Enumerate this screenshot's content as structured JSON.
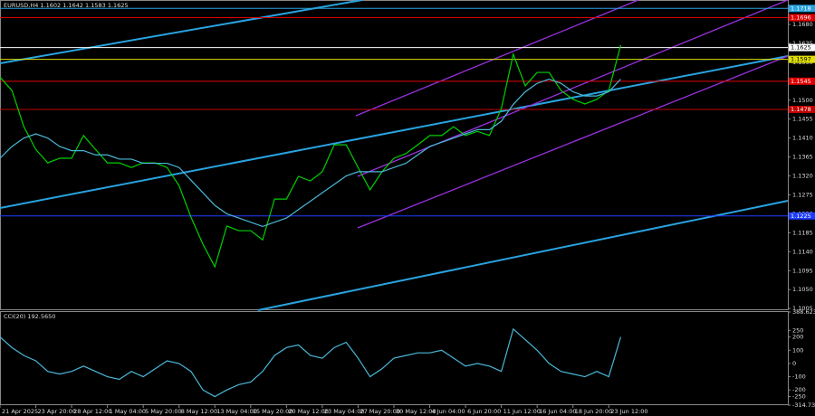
{
  "chart_data": [
    {
      "type": "line",
      "title": "EURUSD,H4  1.1602 1.1642 1.1583 1.1625",
      "xlim": [
        0,
        66
      ],
      "xticks": [
        {
          "value": 0,
          "label": "21 Apr 2025"
        },
        {
          "value": 3,
          "label": "23 Apr 20:00"
        },
        {
          "value": 6,
          "label": "28 Apr 12:00"
        },
        {
          "value": 9,
          "label": "1 May 04:00"
        },
        {
          "value": 12,
          "label": "5 May 20:00"
        },
        {
          "value": 15,
          "label": "8 May 12:00"
        },
        {
          "value": 18,
          "label": "13 May 04:00"
        },
        {
          "value": 21,
          "label": "15 May 20:00"
        },
        {
          "value": 24,
          "label": "20 May 12:00"
        },
        {
          "value": 27,
          "label": "23 May 04:00"
        },
        {
          "value": 30,
          "label": "27 May 20:00"
        },
        {
          "value": 33,
          "label": "30 May 12:00"
        },
        {
          "value": 36,
          "label": "4 Jun 04:00"
        },
        {
          "value": 39,
          "label": "6 Jun 20:00"
        },
        {
          "value": 42,
          "label": "11 Jun 12:00"
        },
        {
          "value": 45,
          "label": "16 Jun 04:00"
        },
        {
          "value": 48,
          "label": "18 Jun 20:00"
        },
        {
          "value": 51,
          "label": "23 Jun 12:00"
        }
      ],
      "ylim": [
        1.1001,
        1.1738
      ],
      "yticks": [
        1.1005,
        {
          "value": 1.105,
          "label": "1.1050"
        },
        1.1095,
        {
          "value": 1.114,
          "label": "1.1140"
        },
        1.1185,
        {
          "value": 1.123,
          "label": "1.1230"
        },
        1.1275,
        {
          "value": 1.132,
          "label": "1.1320"
        },
        1.1365,
        {
          "value": 1.141,
          "label": "1.1410"
        },
        1.1455,
        {
          "value": 1.15,
          "label": "1.1500"
        },
        1.1545,
        {
          "value": 1.159,
          "label": "1.1590"
        },
        1.1635,
        {
          "value": 1.168,
          "label": "1.1680"
        }
      ],
      "levels": [
        {
          "value": 1.1718,
          "color": "#29a3e0"
        },
        {
          "value": 1.1696,
          "color": "#e00000"
        },
        {
          "value": 1.1625,
          "color": "#ffffff"
        },
        {
          "value": 1.1597,
          "color": "#e0e000"
        },
        {
          "value": 1.1545,
          "color": "#e00000"
        },
        {
          "value": 1.1478,
          "color": "#c00000"
        },
        {
          "value": 1.1225,
          "color": "#1e3cff"
        }
      ],
      "series": [
        {
          "color": "#00d000",
          "values": [
            1.1555,
            1.1523,
            1.1437,
            1.1383,
            1.1351,
            1.1362,
            1.1362,
            1.1416,
            1.1383,
            1.1351,
            1.1351,
            1.134,
            1.1351,
            1.1351,
            1.134,
            1.1297,
            1.1222,
            1.1158,
            1.1104,
            1.1201,
            1.119,
            1.119,
            1.1168,
            1.1265,
            1.1265,
            1.1319,
            1.1308,
            1.133,
            1.1394,
            1.1394,
            1.134,
            1.1287,
            1.133,
            1.1362,
            1.1373,
            1.1394,
            1.1416,
            1.1416,
            1.1437,
            1.1416,
            1.1426,
            1.1416,
            1.148,
            1.1609,
            1.1534,
            1.1566,
            1.1566,
            1.1523,
            1.1502,
            1.1491,
            1.1502,
            1.1523,
            1.1631
          ]
        },
        {
          "color": "#4ab8d8",
          "values": [
            1.1362,
            1.139,
            1.141,
            1.142,
            1.141,
            1.139,
            1.138,
            1.138,
            1.137,
            1.137,
            1.136,
            1.136,
            1.135,
            1.135,
            1.135,
            1.134,
            1.131,
            1.128,
            1.125,
            1.123,
            1.122,
            1.121,
            1.12,
            1.121,
            1.122,
            1.124,
            1.126,
            1.128,
            1.13,
            1.132,
            1.133,
            1.133,
            1.133,
            1.134,
            1.135,
            1.137,
            1.139,
            1.14,
            1.141,
            1.142,
            1.143,
            1.143,
            1.145,
            1.149,
            1.152,
            1.154,
            1.155,
            1.154,
            1.152,
            1.151,
            1.151,
            1.152,
            1.155
          ]
        }
      ]
    },
    {
      "type": "line",
      "title": "CCI(20) 192.5650",
      "xlim": [
        0,
        66
      ],
      "ylim": [
        -314.7341,
        388.6237
      ],
      "yticks": [
        -314.7341,
        -250,
        -200,
        -100,
        0,
        100,
        200,
        250,
        388.6237
      ],
      "series": [
        {
          "color": "#4ab8d8",
          "values": [
            200,
            120,
            60,
            20,
            -60,
            -80,
            -60,
            -20,
            -60,
            -100,
            -120,
            -60,
            -100,
            -40,
            20,
            0,
            -60,
            -200,
            -250,
            -200,
            -160,
            -140,
            -60,
            60,
            120,
            140,
            60,
            40,
            120,
            160,
            40,
            -100,
            -40,
            40,
            60,
            80,
            80,
            100,
            40,
            -20,
            0,
            -20,
            -60,
            260,
            180,
            100,
            0,
            -60,
            -80,
            -100,
            -60,
            -100,
            200
          ]
        }
      ]
    }
  ]
}
